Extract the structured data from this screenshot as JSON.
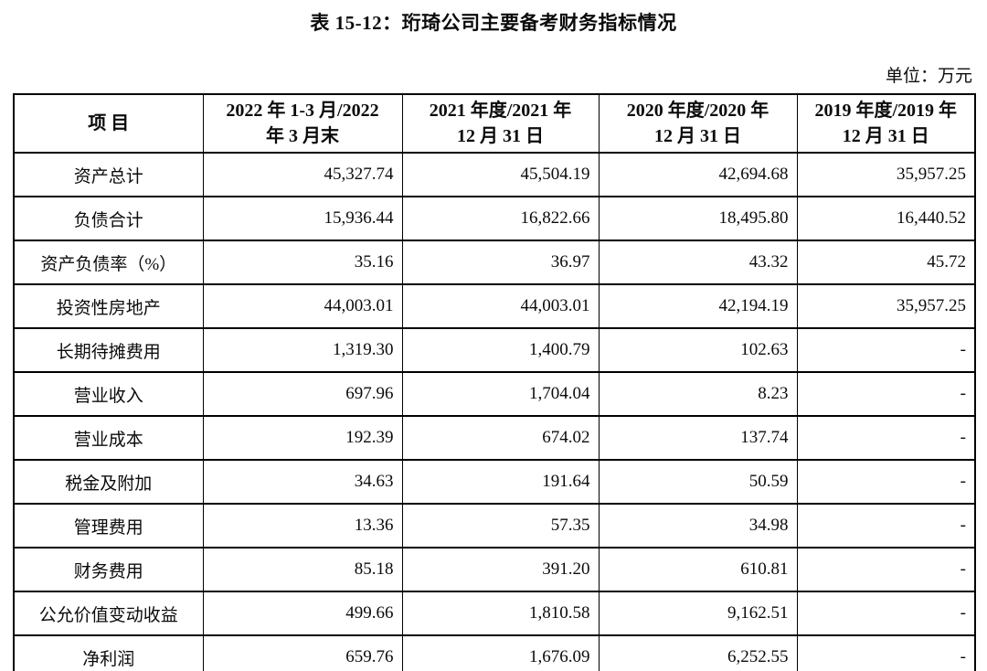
{
  "page": {
    "title": "表 15-12：珩琦公司主要备考财务指标情况",
    "unit_label": "单位：万元"
  },
  "table": {
    "columns": [
      {
        "line1": "项 目",
        "line2": ""
      },
      {
        "line1": "2022 年 1-3 月/2022",
        "line2": "年 3 月末"
      },
      {
        "line1": "2021 年度/2021 年",
        "line2": "12 月 31 日"
      },
      {
        "line1": "2020 年度/2020 年",
        "line2": "12 月 31 日"
      },
      {
        "line1": "2019 年度/2019 年",
        "line2": "12 月 31 日"
      }
    ],
    "rows": [
      {
        "item": "资产总计",
        "values": [
          "45,327.74",
          "45,504.19",
          "42,694.68",
          "35,957.25"
        ]
      },
      {
        "item": "负债合计",
        "values": [
          "15,936.44",
          "16,822.66",
          "18,495.80",
          "16,440.52"
        ]
      },
      {
        "item": "资产负债率（%）",
        "values": [
          "35.16",
          "36.97",
          "43.32",
          "45.72"
        ]
      },
      {
        "item": "投资性房地产",
        "values": [
          "44,003.01",
          "44,003.01",
          "42,194.19",
          "35,957.25"
        ]
      },
      {
        "item": "长期待摊费用",
        "values": [
          "1,319.30",
          "1,400.79",
          "102.63",
          "-"
        ]
      },
      {
        "item": "营业收入",
        "values": [
          "697.96",
          "1,704.04",
          "8.23",
          "-"
        ]
      },
      {
        "item": "营业成本",
        "values": [
          "192.39",
          "674.02",
          "137.74",
          "-"
        ]
      },
      {
        "item": "税金及附加",
        "values": [
          "34.63",
          "191.64",
          "50.59",
          "-"
        ]
      },
      {
        "item": "管理费用",
        "values": [
          "13.36",
          "57.35",
          "34.98",
          "-"
        ]
      },
      {
        "item": "财务费用",
        "values": [
          "85.18",
          "391.20",
          "610.81",
          "-"
        ]
      },
      {
        "item": "公允价值变动收益",
        "values": [
          "499.66",
          "1,810.58",
          "9,162.51",
          "-"
        ]
      },
      {
        "item": "净利润",
        "values": [
          "659.76",
          "1,676.09",
          "6,252.55",
          "-"
        ]
      }
    ]
  }
}
